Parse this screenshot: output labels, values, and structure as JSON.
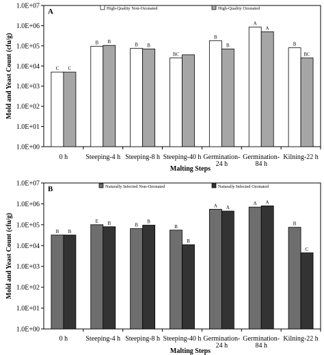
{
  "chart_data": [
    {
      "type": "bar",
      "panel_label": "A",
      "categories": [
        "0 h",
        "Steeping-4 h",
        "Steeping-8 h",
        "Steeping-40 h",
        "Germination-24 h",
        "Germination-84 h",
        "Kilning-22 h"
      ],
      "category_lines": [
        [
          "0 h"
        ],
        [
          "Steeping-4 h"
        ],
        [
          "Steeping-8 h"
        ],
        [
          "Steeping-40 h"
        ],
        [
          "Germination-",
          "24 h"
        ],
        [
          "Germination-",
          "84 h"
        ],
        [
          "Kilning-22 h"
        ]
      ],
      "series": [
        {
          "name": "High-Quality Non-Ozonated",
          "color": "#ffffff",
          "values": [
            5000,
            95000,
            75000,
            25000,
            180000,
            850000,
            80000
          ],
          "letters": [
            "C",
            "B",
            "B",
            "BC",
            "B",
            "A",
            "B"
          ]
        },
        {
          "name": "High-Quality Ozonated",
          "color": "#a6a6a6",
          "values": [
            5000,
            105000,
            70000,
            36000,
            70000,
            500000,
            25000
          ],
          "letters": [
            "C",
            "B",
            "B",
            "",
            "B",
            "A",
            "BC"
          ]
        }
      ],
      "xlabel": "Malting Steps",
      "ylabel": "Mold and Yeast Count (cfu/g)",
      "yscale": "log",
      "ylim": [
        1,
        10000000
      ],
      "yticks": [
        "1.0E+00",
        "1.0E+01",
        "1.0E+02",
        "1.0E+03",
        "1.0E+04",
        "1.0E+05",
        "1.0E+06",
        "1.0E+07"
      ],
      "legend_position": "top"
    },
    {
      "type": "bar",
      "panel_label": "B",
      "categories": [
        "0 h",
        "Steeping-4 h",
        "Steeping-8 h",
        "Steeping-40 h",
        "Germination-24 h",
        "Germination-84 h",
        "Kilning-22 h"
      ],
      "category_lines": [
        [
          "0 h"
        ],
        [
          "Steeping-4 h"
        ],
        [
          "Steeping-8 h"
        ],
        [
          "Steeping-40 h"
        ],
        [
          "Germination-",
          "24 h"
        ],
        [
          "Germination-",
          "84 h"
        ],
        [
          "Kilning-22 h"
        ]
      ],
      "series": [
        {
          "name": "Naturally Infected Non-Ozonated",
          "color": "#6e6e6e",
          "values": [
            32000,
            100000,
            65000,
            55000,
            550000,
            700000,
            75000
          ],
          "letters": [
            "B",
            "E",
            "B",
            "B",
            "A",
            "A",
            "B"
          ]
        },
        {
          "name": "Naturally Infected Ozonated",
          "color": "#333333",
          "values": [
            32000,
            80000,
            95000,
            11000,
            450000,
            800000,
            4500
          ],
          "letters": [
            "B",
            "B",
            "B",
            "B",
            "A",
            "A",
            "C"
          ]
        }
      ],
      "xlabel": "Malting Steps",
      "ylabel": "Mold and Yeast Count (cfu/g)",
      "yscale": "log",
      "ylim": [
        1,
        10000000
      ],
      "yticks": [
        "1.0E+00",
        "1.0E+01",
        "1.0E+02",
        "1.0E+03",
        "1.0E+04",
        "1.0E+05",
        "1.0E+06",
        "1.0E+07"
      ],
      "legend_position": "top"
    }
  ]
}
